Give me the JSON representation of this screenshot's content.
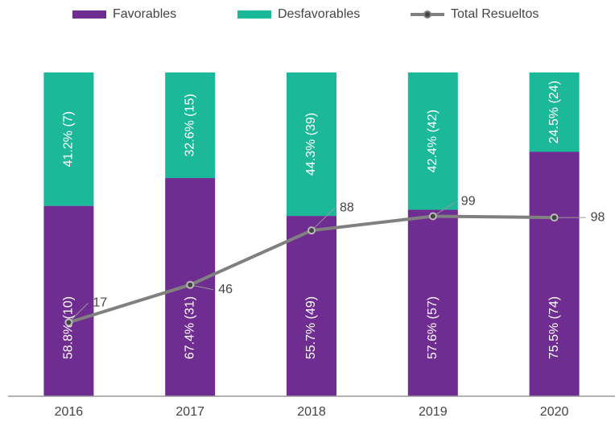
{
  "chart_data": {
    "type": "bar",
    "stacked": true,
    "categories": [
      "2016",
      "2017",
      "2018",
      "2019",
      "2020"
    ],
    "series": [
      {
        "name": "Favorables",
        "color": "#6f2c91",
        "values": [
          58.8,
          67.4,
          55.7,
          57.6,
          75.5
        ],
        "value_labels": [
          "58.8% (10)",
          "67.4% (31)",
          "55.7% (49)",
          "57.6% (57)",
          "75.5% (74)"
        ]
      },
      {
        "name": "Desfavorables",
        "color": "#1bb89a",
        "values": [
          41.2,
          32.6,
          44.3,
          42.4,
          24.5
        ],
        "value_labels": [
          "41.2% (7)",
          "32.6% (15)",
          "44.3% (39)",
          "42.4% (42)",
          "24.5% (24)"
        ]
      },
      {
        "name": "Total Resueltos",
        "type": "line",
        "axis": "y2",
        "color": "#808080",
        "values": [
          17,
          46,
          88,
          99,
          98
        ]
      }
    ],
    "ylim": [
      0,
      100
    ],
    "y2lim": [
      -40,
      210
    ],
    "legend": "top"
  }
}
